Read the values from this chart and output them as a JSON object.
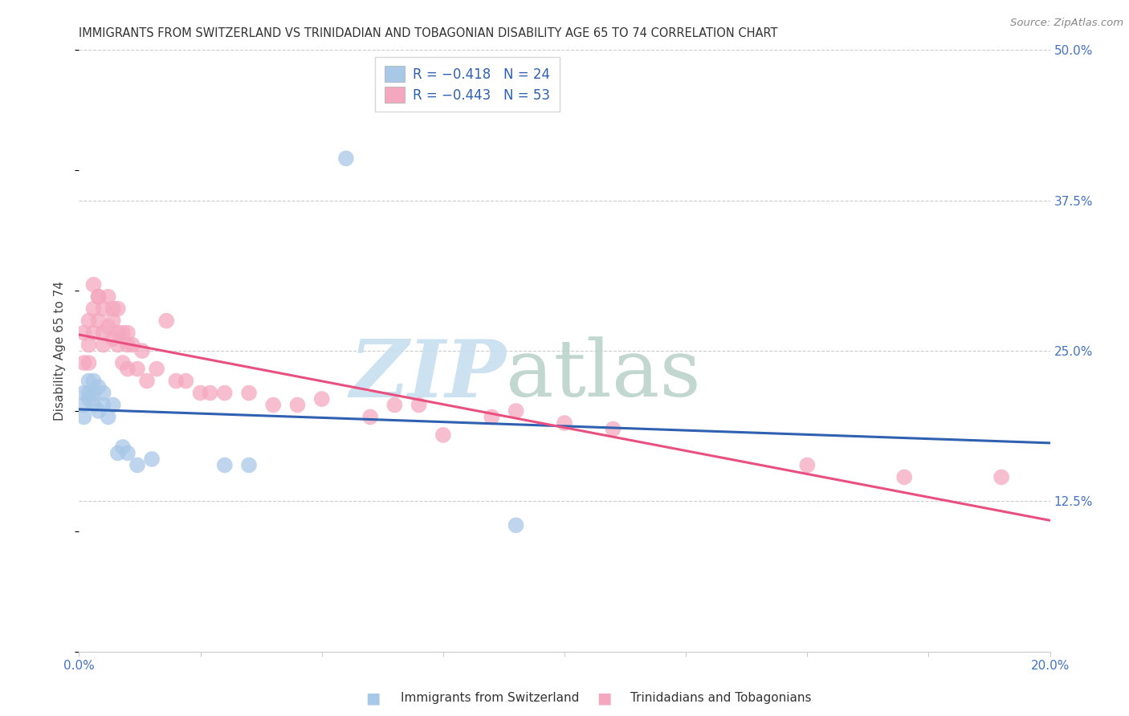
{
  "title": "IMMIGRANTS FROM SWITZERLAND VS TRINIDADIAN AND TOBAGONIAN DISABILITY AGE 65 TO 74 CORRELATION CHART",
  "source": "Source: ZipAtlas.com",
  "ylabel": "Disability Age 65 to 74",
  "x_min": 0.0,
  "x_max": 0.2,
  "y_min": 0.0,
  "y_max": 0.5,
  "x_ticks": [
    0.0,
    0.025,
    0.05,
    0.075,
    0.1,
    0.125,
    0.15,
    0.175,
    0.2
  ],
  "y_ticks": [
    0.0,
    0.125,
    0.25,
    0.375,
    0.5
  ],
  "y_tick_labels": [
    "",
    "12.5%",
    "25.0%",
    "37.5%",
    "50.0%"
  ],
  "legend_R1": "R = −0.418",
  "legend_N1": "N = 24",
  "legend_R2": "R = −0.443",
  "legend_N2": "N = 53",
  "legend_label1": "Immigrants from Switzerland",
  "legend_label2": "Trinidadians and Tobagonians",
  "color_swiss": "#a8c8e8",
  "color_trini": "#f4a8c0",
  "color_swiss_line": "#3060b0",
  "color_trini_line": "#e85080",
  "swiss_x": [
    0.001,
    0.001,
    0.001,
    0.002,
    0.002,
    0.002,
    0.003,
    0.003,
    0.003,
    0.004,
    0.004,
    0.005,
    0.005,
    0.006,
    0.007,
    0.008,
    0.009,
    0.01,
    0.012,
    0.015,
    0.03,
    0.035,
    0.055,
    0.09
  ],
  "swiss_y": [
    0.205,
    0.215,
    0.195,
    0.215,
    0.225,
    0.21,
    0.225,
    0.215,
    0.205,
    0.22,
    0.2,
    0.205,
    0.215,
    0.195,
    0.205,
    0.165,
    0.17,
    0.165,
    0.155,
    0.16,
    0.155,
    0.155,
    0.41,
    0.105
  ],
  "trini_x": [
    0.001,
    0.001,
    0.002,
    0.002,
    0.002,
    0.003,
    0.003,
    0.003,
    0.004,
    0.004,
    0.004,
    0.005,
    0.005,
    0.005,
    0.006,
    0.006,
    0.007,
    0.007,
    0.007,
    0.008,
    0.008,
    0.008,
    0.009,
    0.009,
    0.01,
    0.01,
    0.01,
    0.011,
    0.012,
    0.013,
    0.014,
    0.016,
    0.018,
    0.02,
    0.022,
    0.025,
    0.027,
    0.03,
    0.035,
    0.04,
    0.045,
    0.05,
    0.06,
    0.065,
    0.07,
    0.075,
    0.085,
    0.09,
    0.1,
    0.11,
    0.15,
    0.17,
    0.19
  ],
  "trini_y": [
    0.265,
    0.24,
    0.275,
    0.255,
    0.24,
    0.305,
    0.285,
    0.265,
    0.295,
    0.275,
    0.295,
    0.285,
    0.265,
    0.255,
    0.295,
    0.27,
    0.285,
    0.275,
    0.26,
    0.285,
    0.265,
    0.255,
    0.265,
    0.24,
    0.265,
    0.255,
    0.235,
    0.255,
    0.235,
    0.25,
    0.225,
    0.235,
    0.275,
    0.225,
    0.225,
    0.215,
    0.215,
    0.215,
    0.215,
    0.205,
    0.205,
    0.21,
    0.195,
    0.205,
    0.205,
    0.18,
    0.195,
    0.2,
    0.19,
    0.185,
    0.155,
    0.145,
    0.145
  ],
  "watermark_zip_color": "#c8dff0",
  "watermark_atlas_color": "#b8d0c8",
  "background_color": "#ffffff",
  "grid_color": "#cccccc"
}
